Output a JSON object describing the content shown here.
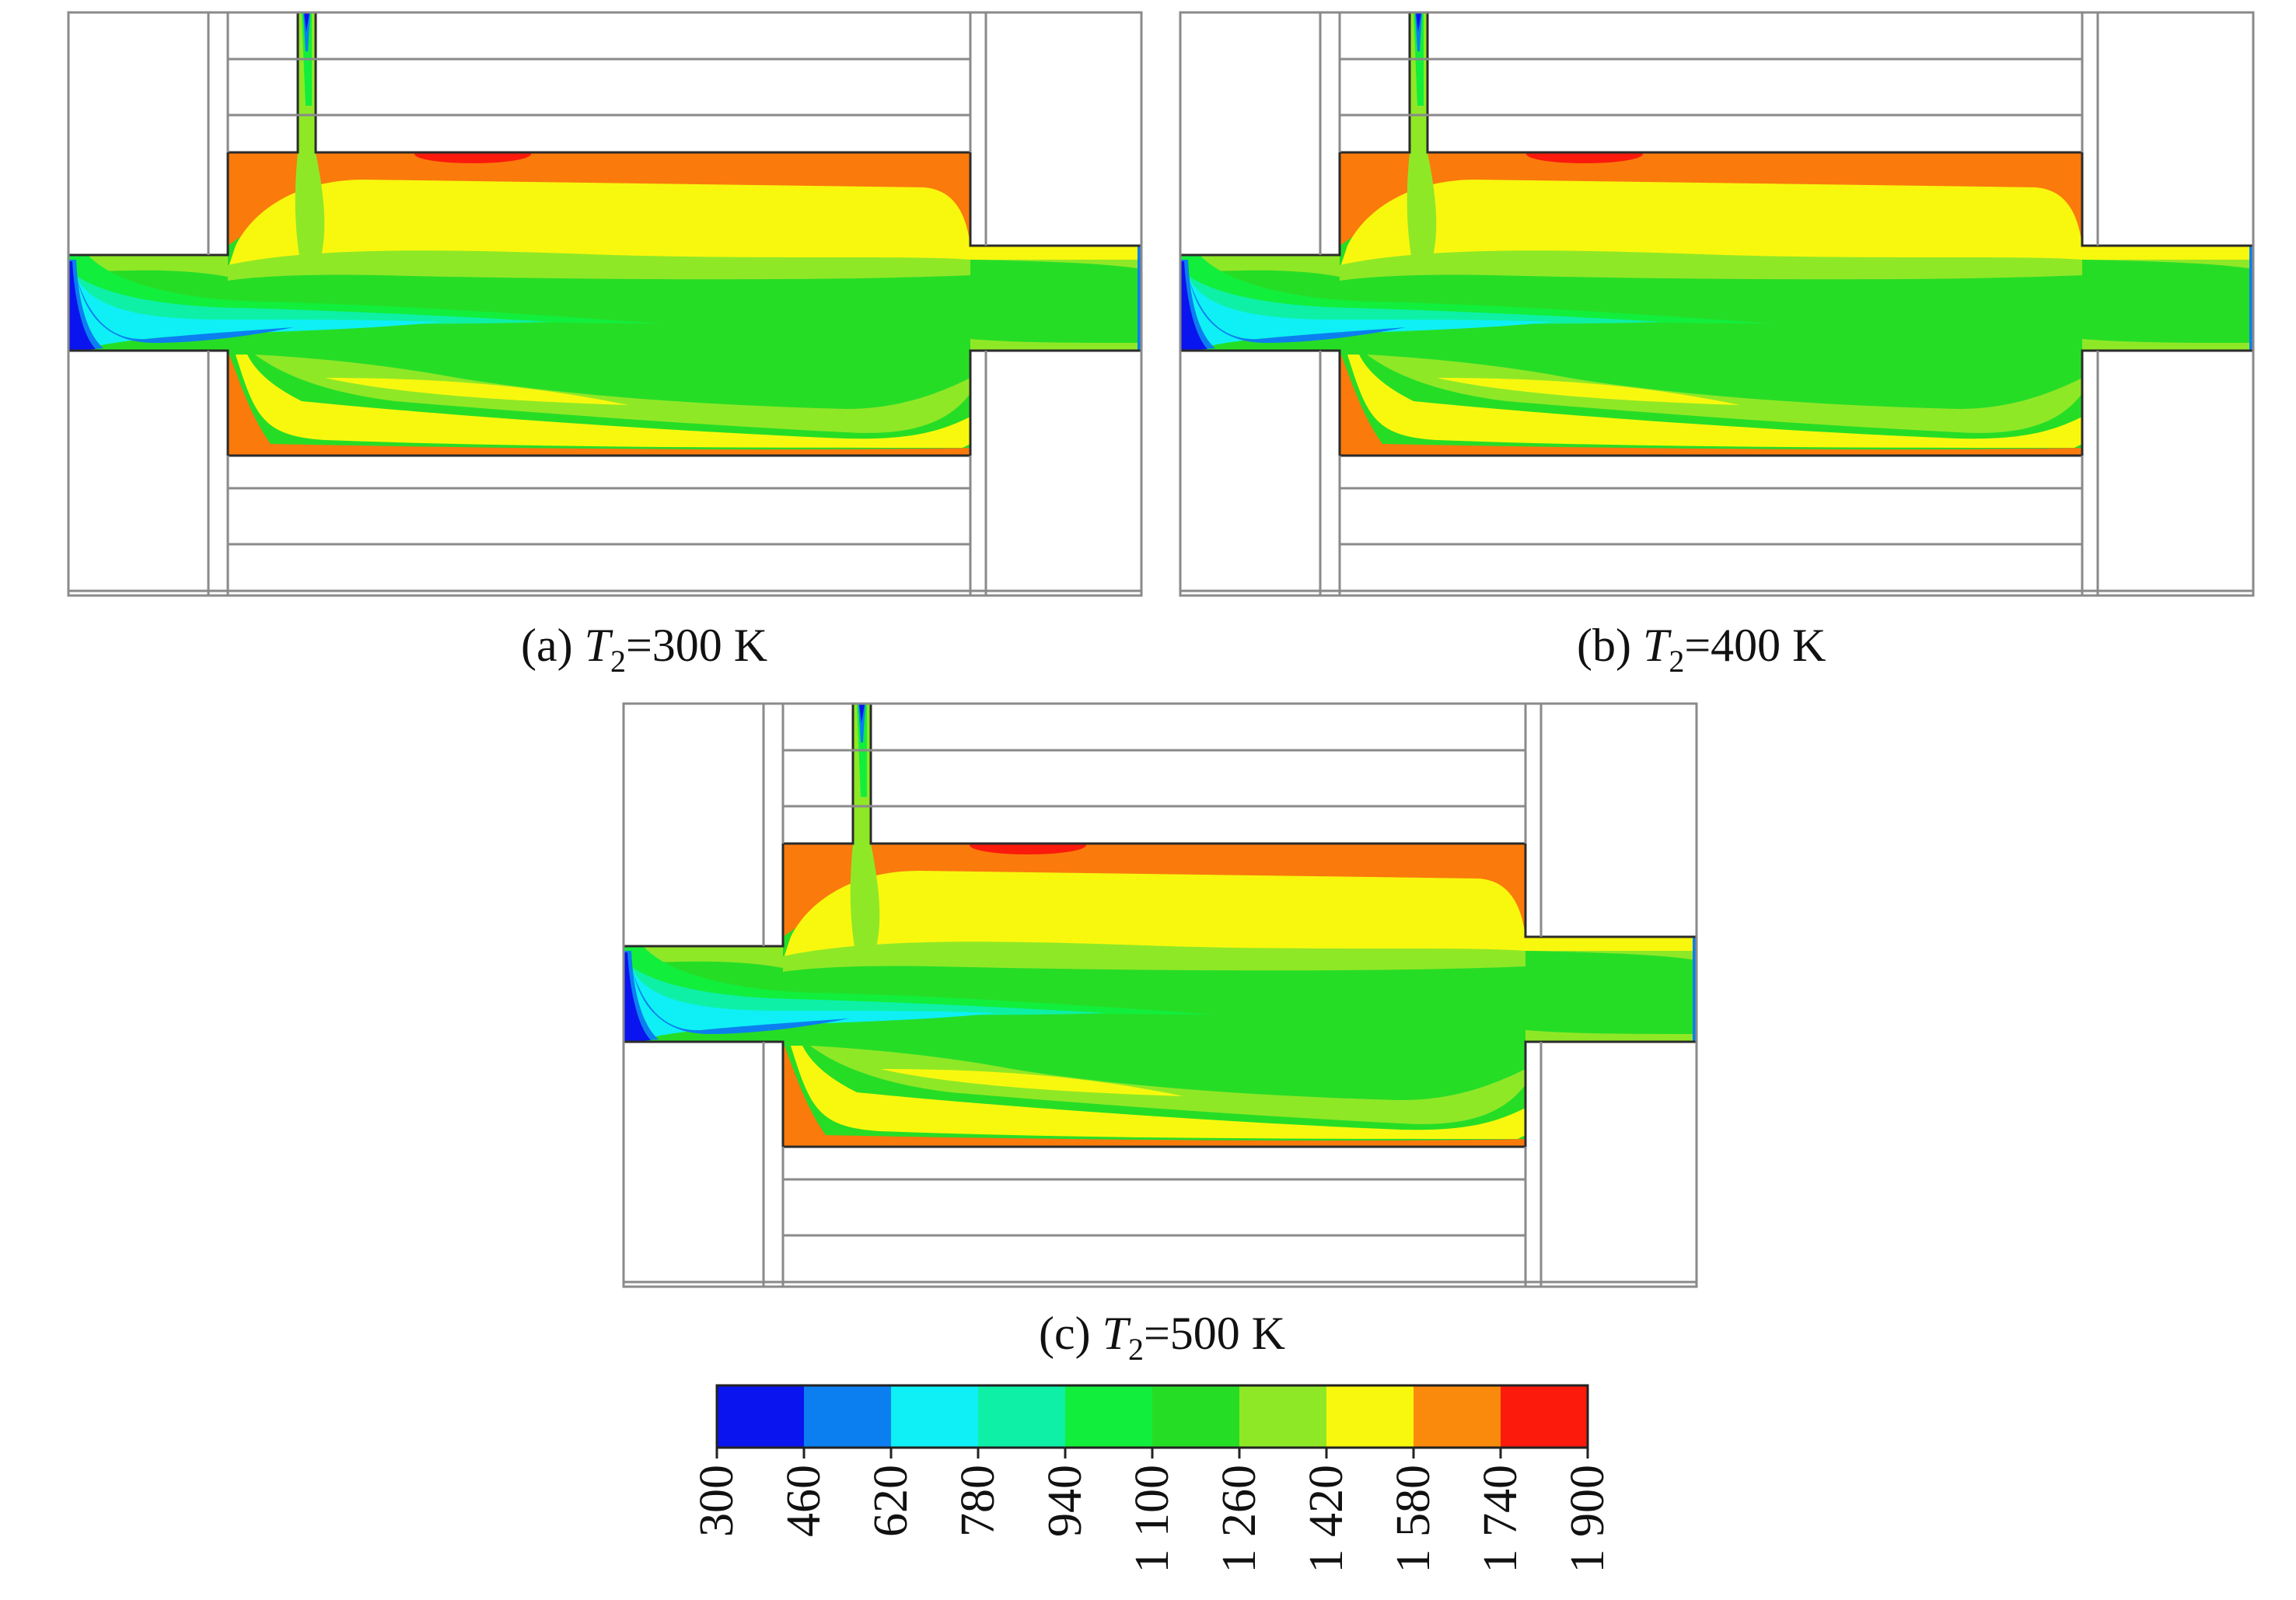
{
  "panels": [
    {
      "id": "a",
      "caption": {
        "prefix": "(a) ",
        "variable": "T",
        "subscript": "2",
        "suffix": "=300 K"
      }
    },
    {
      "id": "b",
      "caption": {
        "prefix": "(b) ",
        "variable": "T",
        "subscript": "2",
        "suffix": "=400 K"
      }
    },
    {
      "id": "c",
      "caption": {
        "prefix": "(c) ",
        "variable": "T",
        "subscript": "2",
        "suffix": "=500 K"
      }
    }
  ],
  "colorbar": {
    "ticks": [
      "300",
      "460",
      "620",
      "780",
      "940",
      "1 100",
      "1 260",
      "1 420",
      "1 580",
      "1 740",
      "1 900"
    ],
    "colors": [
      "#0a14ee",
      "#0b7ff0",
      "#0ef0f5",
      "#0ef0a6",
      "#12ee3c",
      "#26dd26",
      "#8fe826",
      "#f8f80e",
      "#fa8a0c",
      "#fb1a0c"
    ]
  },
  "palette": {
    "inlet_dark": "#0a14ee",
    "inlet_light": "#0b7ff0",
    "cyan": "#0ef0f5",
    "teal": "#0ef0a6",
    "green": "#12ee3c",
    "lime": "#8fe826",
    "yellow": "#f8f80e",
    "orange": "#fa7a0c",
    "red": "#fb1a0c"
  }
}
